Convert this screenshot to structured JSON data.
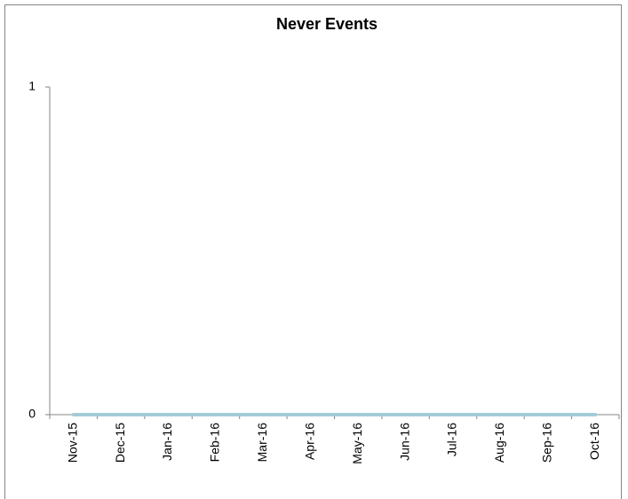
{
  "chart_data": {
    "type": "line",
    "title": "Never Events",
    "categories": [
      "Nov-15",
      "Dec-15",
      "Jan-16",
      "Feb-16",
      "Mar-16",
      "Apr-16",
      "May-16",
      "Jun-16",
      "Jul-16",
      "Aug-16",
      "Sep-16",
      "Oct-16"
    ],
    "values": [
      0,
      0,
      0,
      0,
      0,
      0,
      0,
      0,
      0,
      0,
      0,
      0
    ],
    "color": "#a3ccd6",
    "ylim": [
      0,
      1
    ],
    "yticks": [
      0,
      1
    ],
    "grid": false
  }
}
